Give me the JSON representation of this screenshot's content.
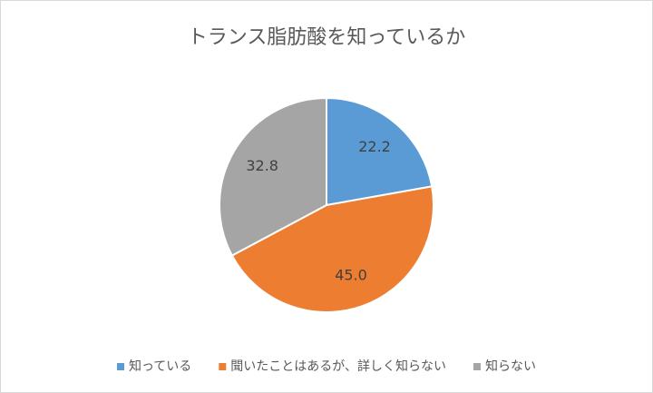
{
  "chart_data": {
    "type": "pie",
    "title": "トランス脂肪酸を知っているか",
    "categories": [
      "知っている",
      "聞いたことはあるが、詳しく知らない",
      "知らない"
    ],
    "values": [
      22.2,
      45,
      32.8
    ],
    "value_labels": [
      "22.2",
      "45.0",
      "32.8"
    ],
    "colors": [
      "#5b9bd5",
      "#ed7d31",
      "#a5a5a5"
    ],
    "legend": "bottom"
  }
}
